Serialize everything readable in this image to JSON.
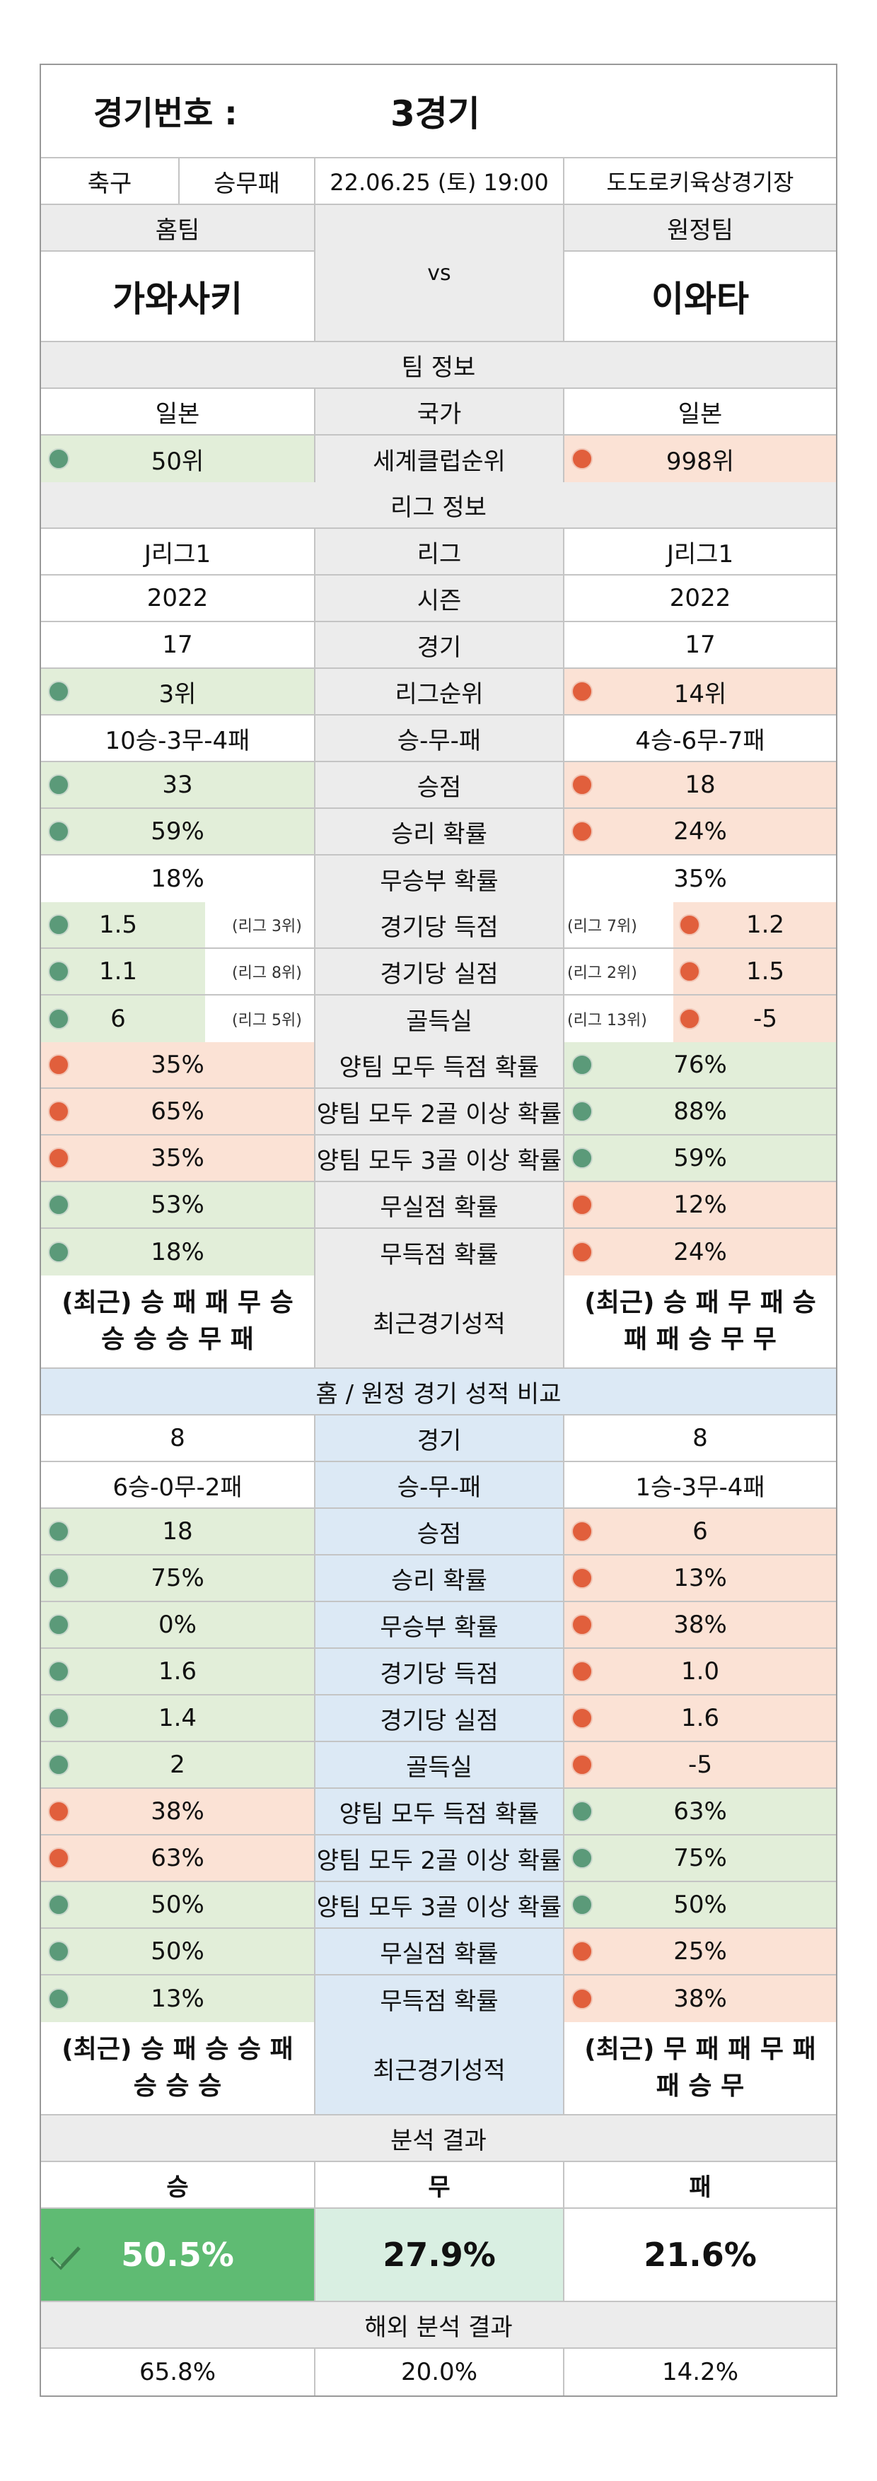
{
  "header": {
    "match_no_label": "경기번호 :",
    "match_no_value": "3경기"
  },
  "info": {
    "sport": "축구",
    "bet_type": "승무패",
    "datetime": "22.06.25 (토) 19:00",
    "venue": "도도로키육상경기장"
  },
  "teams": {
    "home_label": "홈팀",
    "away_label": "원정팀",
    "vs": "vs",
    "home": "가와사키",
    "away": "이와타"
  },
  "team_info": {
    "title": "팀 정보",
    "rows": [
      {
        "home": "일본",
        "label": "국가",
        "away": "일본"
      },
      {
        "home": "50위",
        "label": "세계클럽순위",
        "away": "998위",
        "hdot": "g",
        "adot": "r"
      }
    ]
  },
  "league_info": {
    "title": "리그 정보",
    "rows": [
      {
        "home": "J리그1",
        "label": "리그",
        "away": "J리그1"
      },
      {
        "home": "2022",
        "label": "시즌",
        "away": "2022"
      },
      {
        "home": "17",
        "label": "경기",
        "away": "17"
      },
      {
        "home": "3위",
        "label": "리그순위",
        "away": "14위",
        "hdot": "g",
        "adot": "r"
      },
      {
        "home": "10승-3무-4패",
        "label": "승-무-패",
        "away": "4승-6무-7패"
      },
      {
        "home": "33",
        "label": "승점",
        "away": "18",
        "hdot": "g",
        "adot": "r"
      },
      {
        "home": "59%",
        "label": "승리 확률",
        "away": "24%",
        "hdot": "g",
        "adot": "r"
      },
      {
        "home": "18%",
        "label": "무승부 확률",
        "away": "35%"
      }
    ],
    "rank_rows": [
      {
        "home": "1.5",
        "home_rank": "(리그 3위)",
        "label": "경기당 득점",
        "away_rank": "(리그 7위)",
        "away": "1.2"
      },
      {
        "home": "1.1",
        "home_rank": "(리그 8위)",
        "label": "경기당 실점",
        "away_rank": "(리그 2위)",
        "away": "1.5"
      },
      {
        "home": "6",
        "home_rank": "(리그 5위)",
        "label": "골득실",
        "away_rank": "(리그 13위)",
        "away": "-5"
      }
    ],
    "rows2": [
      {
        "home": "35%",
        "label": "양팀 모두 득점 확률",
        "away": "76%",
        "hdot": "r",
        "adot": "g"
      },
      {
        "home": "65%",
        "label": "양팀 모두 2골 이상 확률",
        "away": "88%",
        "hdot": "r",
        "adot": "g"
      },
      {
        "home": "35%",
        "label": "양팀 모두 3골 이상 확률",
        "away": "59%",
        "hdot": "r",
        "adot": "g"
      },
      {
        "home": "53%",
        "label": "무실점 확률",
        "away": "12%",
        "hdot": "g",
        "adot": "r"
      },
      {
        "home": "18%",
        "label": "무득점 확률",
        "away": "24%",
        "hdot": "g",
        "adot": "r"
      }
    ],
    "recent": {
      "home1": "(최근) 승 패 패 무 승",
      "home2": "승 승 승 무 패",
      "label": "최근경기성적",
      "away1": "(최근) 승 패 무 패 승",
      "away2": "패 패 승 무 무"
    }
  },
  "homeaway": {
    "title": "홈 / 원정 경기 성적 비교",
    "rows": [
      {
        "home": "8",
        "label": "경기",
        "away": "8"
      },
      {
        "home": "6승-0무-2패",
        "label": "승-무-패",
        "away": "1승-3무-4패"
      },
      {
        "home": "18",
        "label": "승점",
        "away": "6",
        "hdot": "g",
        "adot": "r"
      },
      {
        "home": "75%",
        "label": "승리 확률",
        "away": "13%",
        "hdot": "g",
        "adot": "r"
      },
      {
        "home": "0%",
        "label": "무승부 확률",
        "away": "38%",
        "hdot": "g",
        "adot": "r"
      },
      {
        "home": "1.6",
        "label": "경기당 득점",
        "away": "1.0",
        "hdot": "g",
        "adot": "r"
      },
      {
        "home": "1.4",
        "label": "경기당 실점",
        "away": "1.6",
        "hdot": "g",
        "adot": "r"
      },
      {
        "home": "2",
        "label": "골득실",
        "away": "-5",
        "hdot": "g",
        "adot": "r"
      },
      {
        "home": "38%",
        "label": "양팀 모두 득점 확률",
        "away": "63%",
        "hdot": "r",
        "adot": "g"
      },
      {
        "home": "63%",
        "label": "양팀 모두 2골 이상 확률",
        "away": "75%",
        "hdot": "r",
        "adot": "g"
      },
      {
        "home": "50%",
        "label": "양팀 모두 3골 이상 확률",
        "away": "50%",
        "hdot": "g",
        "adot": "g"
      },
      {
        "home": "50%",
        "label": "무실점 확률",
        "away": "25%",
        "hdot": "g",
        "adot": "r"
      },
      {
        "home": "13%",
        "label": "무득점 확률",
        "away": "38%",
        "hdot": "g",
        "adot": "r"
      }
    ],
    "recent": {
      "home1": "(최근) 승 패 승 승 패",
      "home2": "승 승 승",
      "label": "최근경기성적",
      "away1": "(최근) 무 패 패 무 패",
      "away2": "패 승 무"
    }
  },
  "analysis": {
    "title": "분석 결과",
    "win_label": "승",
    "draw_label": "무",
    "loss_label": "패",
    "win": "50.5%",
    "draw": "27.9%",
    "loss": "21.6%",
    "overseas_title": "해외 분석 결과",
    "o_win": "65.8%",
    "o_draw": "20.0%",
    "o_loss": "14.2%"
  },
  "colors": {
    "positive": "#5b9a79",
    "negative": "#e15f3c",
    "win_box": "#5fbb73",
    "draw_box": "#d9efe2"
  }
}
